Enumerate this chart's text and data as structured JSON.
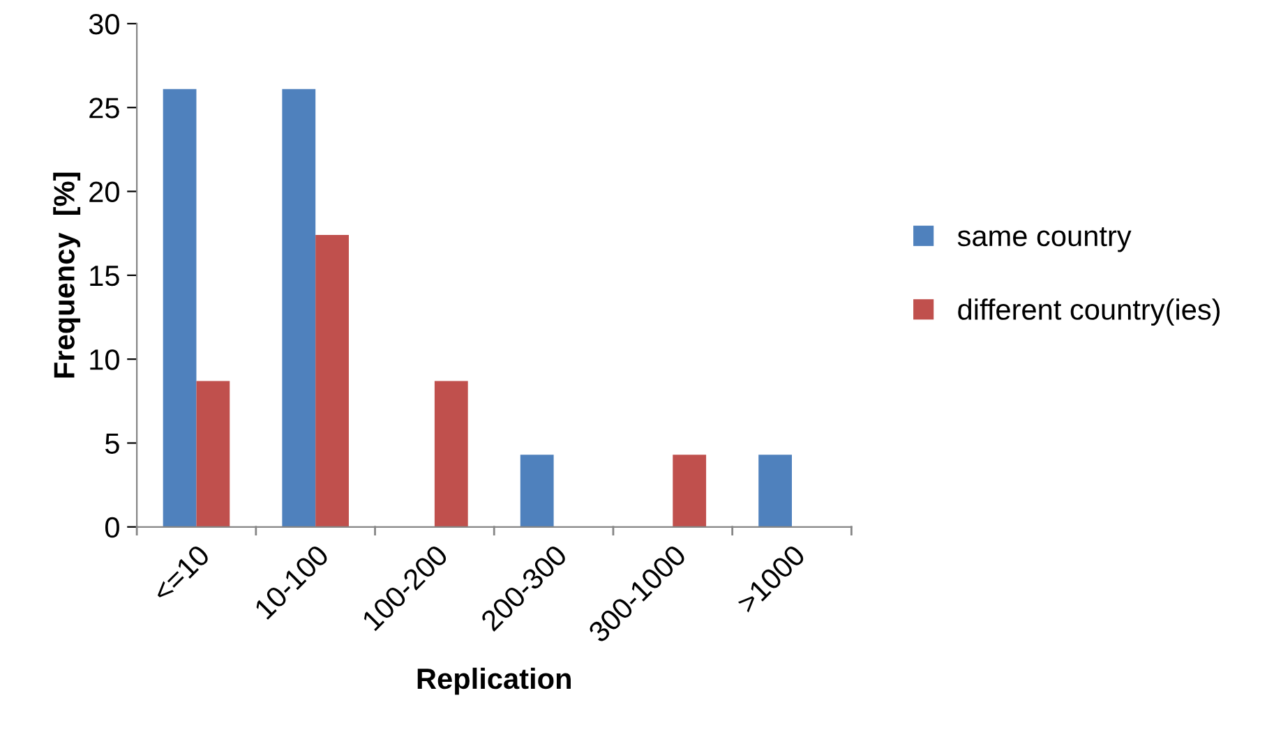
{
  "chart_data": {
    "type": "bar",
    "xlabel": "Replication",
    "ylabel": "Frequency  [%]",
    "categories": [
      "<=10",
      "10-100",
      "100-200",
      "200-300",
      "300-1000",
      ">1000"
    ],
    "series": [
      {
        "name": "same country",
        "color": "#4f81bd",
        "values": [
          26.1,
          26.1,
          0,
          4.3,
          0,
          4.3
        ]
      },
      {
        "name": "different country(ies)",
        "color": "#c0504d",
        "values": [
          8.7,
          17.4,
          8.7,
          0,
          4.3,
          0
        ]
      }
    ],
    "ylim": [
      0,
      30
    ],
    "yticks": [
      0,
      5,
      10,
      15,
      20,
      25,
      30
    ],
    "grid": false,
    "legend": "right"
  }
}
